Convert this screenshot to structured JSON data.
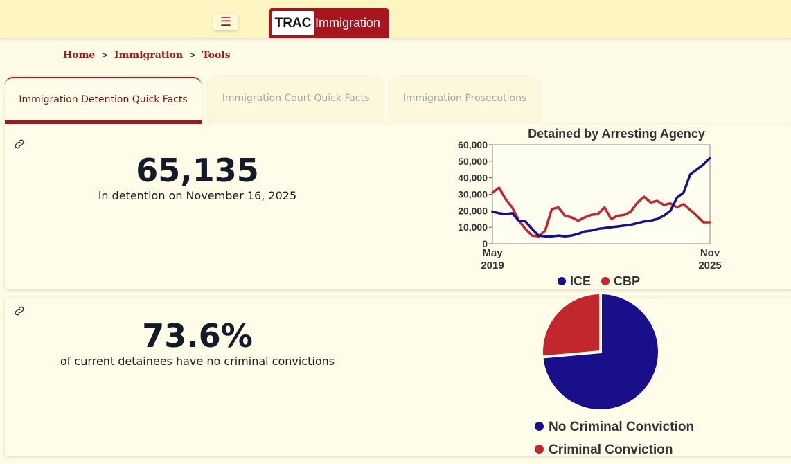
{
  "header": {
    "menu_icon": "hamburger-icon",
    "logo": {
      "part1": "TRAC",
      "part2": "Immigration",
      "color": "#a5161e"
    }
  },
  "breadcrumb": [
    {
      "label": "Home"
    },
    {
      "label": "Immigration"
    },
    {
      "label": "Tools"
    }
  ],
  "breadcrumb_sep": ">",
  "tabs": [
    {
      "label": "Immigration Detention Quick Facts",
      "active": true
    },
    {
      "label": "Immigration Court Quick Facts",
      "active": false
    },
    {
      "label": "Immigration Prosecutions",
      "active": false
    }
  ],
  "facts": [
    {
      "value": "65,135",
      "label": "in detention on November 16, 2025",
      "icon": "link-icon"
    },
    {
      "value": "73.6%",
      "label": "of current detainees have no criminal convictions",
      "icon": "link-icon"
    }
  ],
  "chart_data": [
    {
      "type": "line",
      "title": "Detained by Arresting Agency",
      "x_tick_labels": [
        {
          "month": "May",
          "year": "2019"
        },
        {
          "month": "Nov",
          "year": "2025"
        }
      ],
      "x": [
        0,
        2,
        4,
        6,
        8,
        10,
        12,
        14,
        16,
        18,
        20,
        22,
        24,
        26,
        28,
        30,
        32,
        34,
        36,
        38,
        40,
        42,
        44,
        46,
        48,
        50,
        52,
        54,
        56,
        58,
        60,
        62,
        64,
        66,
        68,
        70,
        72,
        74,
        76
      ],
      "ylim": [
        0,
        60000
      ],
      "y_ticks": [
        "0",
        "10,000",
        "20,000",
        "30,000",
        "40,000",
        "50,000",
        "60,000"
      ],
      "grid": false,
      "legend": "bottom",
      "series": [
        {
          "name": "ICE",
          "color": "#1a0f8a",
          "values": [
            19500,
            18500,
            18000,
            18500,
            14000,
            13500,
            9000,
            5000,
            4500,
            4500,
            5000,
            4500,
            5000,
            6000,
            7500,
            8000,
            9000,
            9500,
            10000,
            10500,
            11000,
            11500,
            12500,
            13500,
            14000,
            15000,
            17000,
            20000,
            28000,
            31000,
            42000,
            45000,
            48000,
            52000,
            52000,
            52000,
            52000,
            52000,
            52000
          ]
        },
        {
          "name": "CBP",
          "color": "#c1272d",
          "values": [
            31000,
            34000,
            27000,
            22000,
            14000,
            9000,
            5000,
            4500,
            8000,
            21000,
            22000,
            17000,
            16000,
            14000,
            16000,
            17500,
            18000,
            22000,
            15000,
            17000,
            17500,
            19500,
            25000,
            28500,
            25000,
            26000,
            23500,
            24500,
            22000,
            24000,
            20500,
            17000,
            13000,
            13000,
            13000,
            13000,
            13000,
            13000,
            13000
          ]
        }
      ]
    },
    {
      "type": "pie",
      "legend": "bottom",
      "slices": [
        {
          "name": "No Criminal Conviction",
          "value": 73.6,
          "color": "#1a0f8a"
        },
        {
          "name": "Criminal Conviction",
          "value": 26.4,
          "color": "#c1272d"
        }
      ]
    }
  ]
}
